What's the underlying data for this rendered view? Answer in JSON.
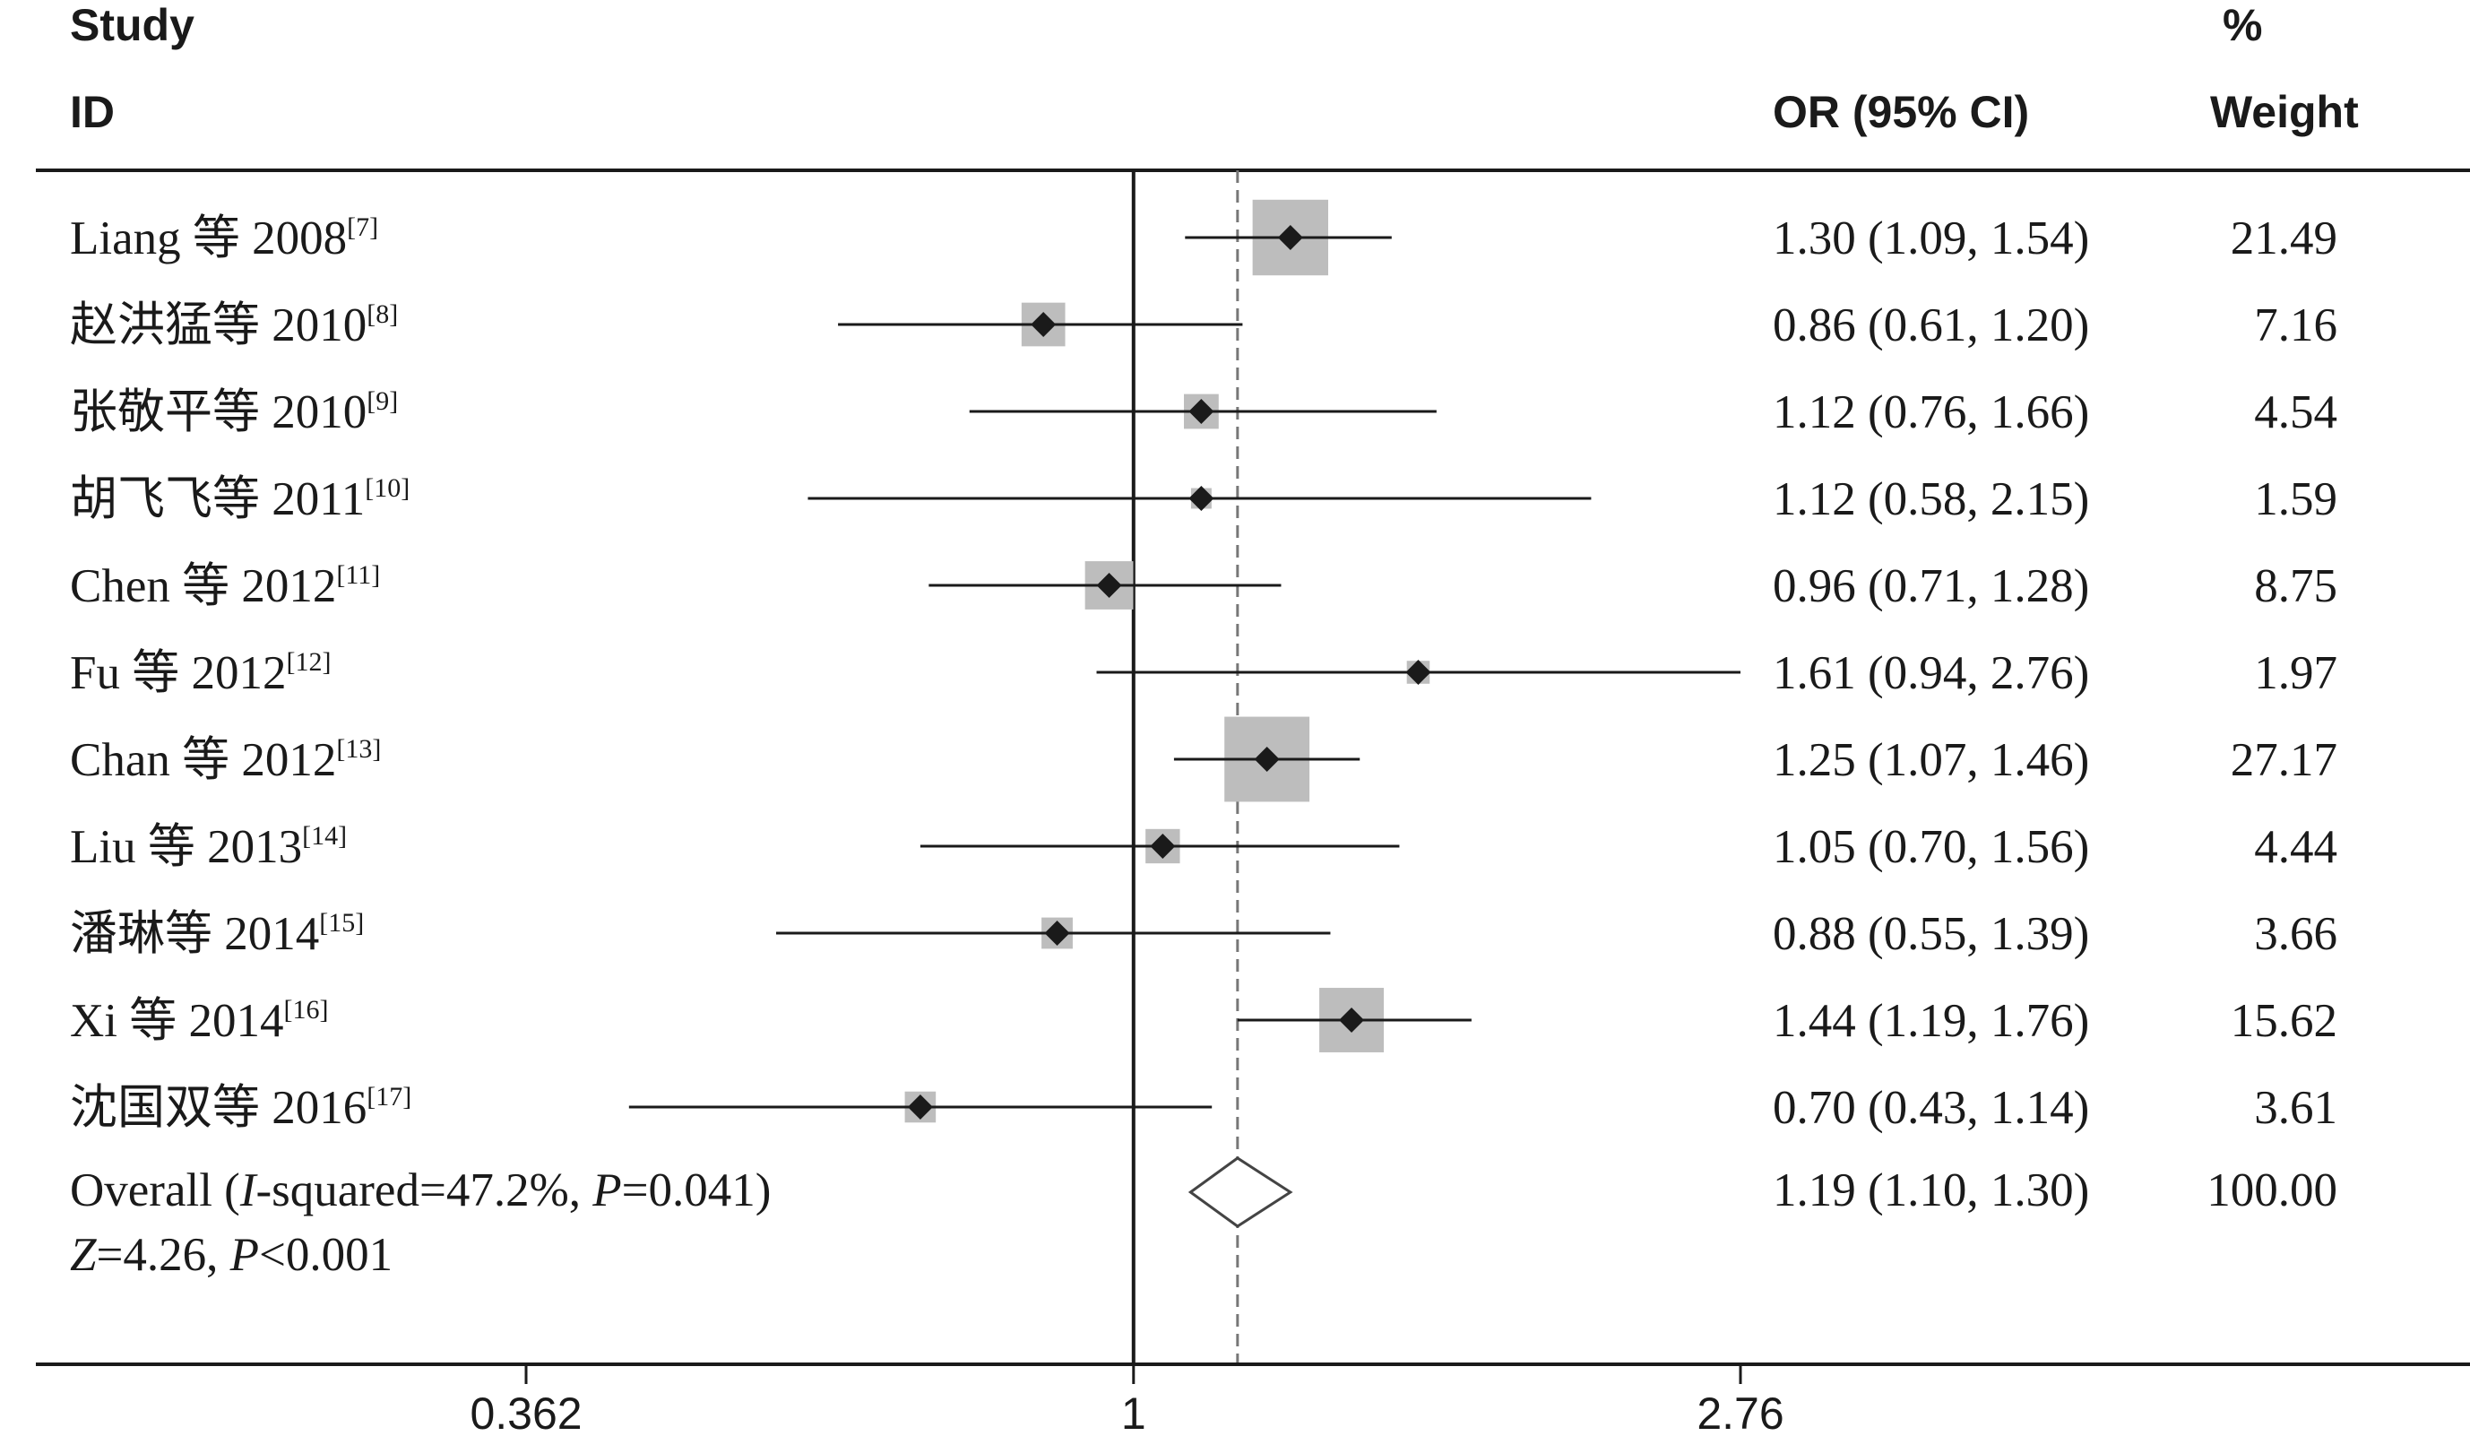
{
  "chart_data": {
    "type": "forest",
    "headers": {
      "study_line1": "Study",
      "study_line2": "ID",
      "effect": "OR (95% CI)",
      "weight_line1": "%",
      "weight_line2": "Weight"
    },
    "studies": [
      {
        "name": "Liang 等 2008",
        "ref": "[7]",
        "or": 1.3,
        "lo": 1.09,
        "hi": 1.54,
        "ci_text": "1.30 (1.09, 1.54)",
        "weight": 21.49,
        "weight_text": "21.49"
      },
      {
        "name": "赵洪猛等 2010",
        "ref": "[8]",
        "or": 0.86,
        "lo": 0.61,
        "hi": 1.2,
        "ci_text": "0.86 (0.61, 1.20)",
        "weight": 7.16,
        "weight_text": "7.16"
      },
      {
        "name": "张敬平等 2010",
        "ref": "[9]",
        "or": 1.12,
        "lo": 0.76,
        "hi": 1.66,
        "ci_text": "1.12 (0.76, 1.66)",
        "weight": 4.54,
        "weight_text": "4.54"
      },
      {
        "name": "胡飞飞等 2011",
        "ref": "[10]",
        "or": 1.12,
        "lo": 0.58,
        "hi": 2.15,
        "ci_text": "1.12 (0.58, 2.15)",
        "weight": 1.59,
        "weight_text": "1.59"
      },
      {
        "name": "Chen 等 2012",
        "ref": "[11]",
        "or": 0.96,
        "lo": 0.71,
        "hi": 1.28,
        "ci_text": "0.96 (0.71, 1.28)",
        "weight": 8.75,
        "weight_text": "8.75"
      },
      {
        "name": "Fu 等 2012",
        "ref": "[12]",
        "or": 1.61,
        "lo": 0.94,
        "hi": 2.76,
        "ci_text": "1.61 (0.94, 2.76)",
        "weight": 1.97,
        "weight_text": "1.97"
      },
      {
        "name": "Chan 等 2012",
        "ref": "[13]",
        "or": 1.25,
        "lo": 1.07,
        "hi": 1.46,
        "ci_text": "1.25 (1.07, 1.46)",
        "weight": 27.17,
        "weight_text": "27.17"
      },
      {
        "name": "Liu 等 2013",
        "ref": "[14]",
        "or": 1.05,
        "lo": 0.7,
        "hi": 1.56,
        "ci_text": "1.05 (0.70, 1.56)",
        "weight": 4.44,
        "weight_text": "4.44"
      },
      {
        "name": "潘琳等 2014",
        "ref": "[15]",
        "or": 0.88,
        "lo": 0.55,
        "hi": 1.39,
        "ci_text": "0.88 (0.55, 1.39)",
        "weight": 3.66,
        "weight_text": "3.66"
      },
      {
        "name": "Xi 等 2014",
        "ref": "[16]",
        "or": 1.44,
        "lo": 1.19,
        "hi": 1.76,
        "ci_text": "1.44 (1.19, 1.76)",
        "weight": 15.62,
        "weight_text": "15.62"
      },
      {
        "name": "沈国双等 2016",
        "ref": "[17]",
        "or": 0.7,
        "lo": 0.43,
        "hi": 1.14,
        "ci_text": "0.70 (0.43, 1.14)",
        "weight": 3.61,
        "weight_text": "3.61"
      }
    ],
    "overall": {
      "or": 1.19,
      "lo": 1.1,
      "hi": 1.3,
      "ci_text": "1.19 (1.10, 1.30)",
      "weight_text": "100.00",
      "label_prefix": "Overall (",
      "label_i": "I",
      "label_mid": "-squared=47.2%, ",
      "label_p": "P",
      "label_end": "=0.041)",
      "z_label_z": "Z",
      "z_label_mid": "=4.26, ",
      "z_label_p": "P",
      "z_label_end": "<0.001"
    },
    "x_axis": {
      "scale": "log",
      "ticks": [
        0.362,
        1,
        2.76
      ],
      "tick_labels": [
        "0.362",
        "1",
        "2.76"
      ],
      "range": [
        0.362,
        2.76
      ]
    },
    "null_line": 1,
    "overall_line": 1.19,
    "colors": {
      "text": "#1a1a1a",
      "weight_box": "#bdbdbd",
      "marker": "#1a1a1a",
      "dashed": "#777777"
    }
  }
}
